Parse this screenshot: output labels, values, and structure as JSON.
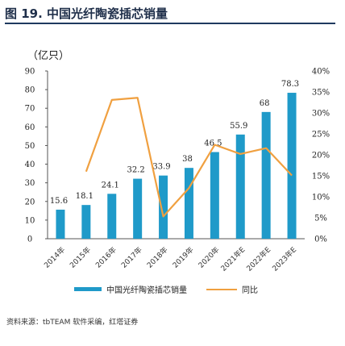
{
  "header": {
    "title": "图 19. 中国光纤陶瓷插芯销量"
  },
  "unit_label": "（亿只）",
  "legend": {
    "bar": "中国光纤陶瓷插芯销量",
    "line": "同比"
  },
  "source": "资料来源：tbTEAM 软件采编，红塔证券",
  "colors": {
    "bar": "#1f9ac9",
    "line": "#f0a040"
  },
  "chart_data": {
    "type": "bar",
    "categories": [
      "2014年",
      "2015年",
      "2016年",
      "2017年",
      "2018年",
      "2019年",
      "2020年",
      "2021年E",
      "2022年E",
      "2023年E"
    ],
    "series": [
      {
        "name": "中国光纤陶瓷插芯销量",
        "type": "bar",
        "axis": "left",
        "values": [
          15.6,
          18.1,
          24.1,
          32.2,
          33.9,
          38,
          46.5,
          55.9,
          68,
          78.3
        ]
      },
      {
        "name": "同比",
        "type": "line",
        "axis": "right",
        "values": [
          null,
          16.0,
          33.1,
          33.6,
          5.3,
          12.1,
          22.4,
          20.2,
          21.6,
          15.1
        ]
      }
    ],
    "data_labels": [
      "15.6",
      "18.1",
      "24.1",
      "32.2",
      "33.9",
      "38",
      "46.5",
      "55.9",
      "68",
      "78.3"
    ],
    "y_left": {
      "ylim": [
        0,
        90
      ],
      "ticks": [
        "0",
        "10",
        "20",
        "30",
        "40",
        "50",
        "60",
        "70",
        "80",
        "90"
      ]
    },
    "y_right": {
      "ylim": [
        0,
        40
      ],
      "ticks": [
        "0%",
        "5%",
        "10%",
        "15%",
        "20%",
        "25%",
        "30%",
        "35%",
        "40%"
      ]
    },
    "grid": false,
    "legend_position": "bottom"
  }
}
